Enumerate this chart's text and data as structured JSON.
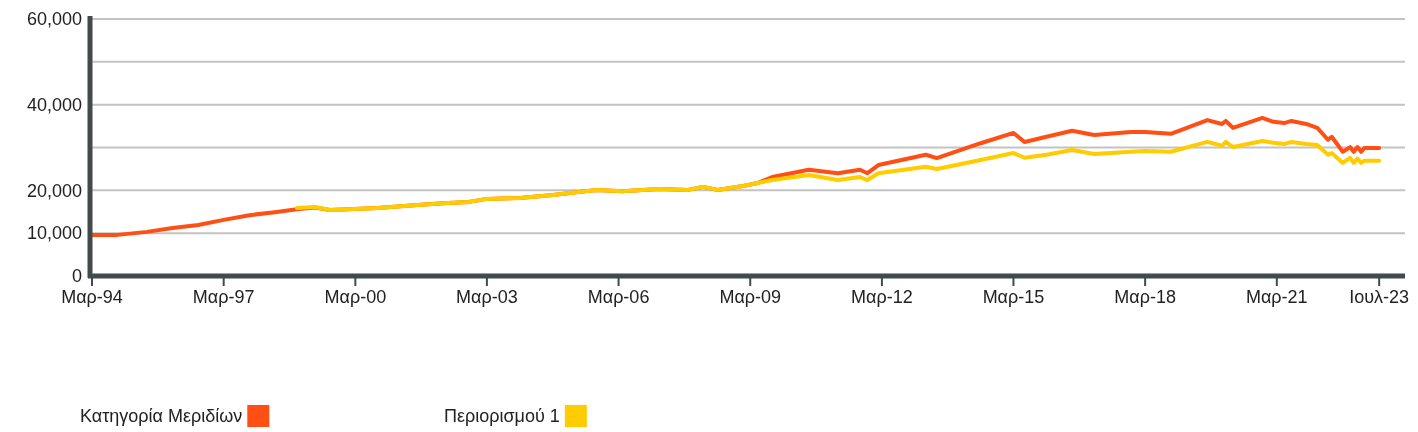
{
  "chart_data": {
    "type": "line",
    "xlim": [
      "1994-03",
      "2024-02"
    ],
    "ylim": [
      0,
      60000
    ],
    "yticks": [
      0,
      {
        "value": 10000,
        "label": "10,000"
      },
      {
        "value": 20000,
        "label": "20,000"
      },
      {
        "value": 30000,
        "label": null
      },
      {
        "value": 40000,
        "label": "40,000"
      },
      {
        "value": 50000,
        "label": null
      },
      {
        "value": 60000,
        "label": "60,000"
      }
    ],
    "xticks": [
      {
        "value": "1994-03",
        "label": "Μαρ-94"
      },
      {
        "value": "1997-03",
        "label": "Μαρ-97"
      },
      {
        "value": "2000-03",
        "label": "Μαρ-00"
      },
      {
        "value": "2003-03",
        "label": "Μαρ-03"
      },
      {
        "value": "2006-03",
        "label": "Μαρ-06"
      },
      {
        "value": "2009-03",
        "label": "Μαρ-09"
      },
      {
        "value": "2012-03",
        "label": "Μαρ-12"
      },
      {
        "value": "2015-03",
        "label": "Μαρ-15"
      },
      {
        "value": "2018-03",
        "label": "Μαρ-18"
      },
      {
        "value": "2021-03",
        "label": "Μαρ-21"
      },
      {
        "value": "2023-07",
        "label": "Ιουλ-23"
      }
    ],
    "grid": "y",
    "legend": "bottom left",
    "line_style": "solid",
    "marker": "none",
    "series": [
      {
        "name": "Κατηγορία Μεριδίων",
        "color": "#ff4f14",
        "x": [
          "1994-03",
          "1994-10",
          "1995-06",
          "1996-01",
          "1996-08",
          "1997-03",
          "1997-10",
          "1998-05",
          "1998-11",
          "1999-04",
          "1999-08",
          "2000-01",
          "2000-09",
          "2001-08",
          "2002-03",
          "2002-10",
          "2003-03",
          "2003-12",
          "2004-09",
          "2005-04",
          "2005-09",
          "2006-04",
          "2007-02",
          "2007-10",
          "2008-02",
          "2008-06",
          "2009-01",
          "2009-05",
          "2009-09",
          "2010-07",
          "2011-03",
          "2011-09",
          "2011-11",
          "2012-02",
          "2013-03",
          "2013-06",
          "2014-06",
          "2015-03",
          "2015-06",
          "2015-12",
          "2016-07",
          "2017-01",
          "2017-11",
          "2018-03",
          "2018-10",
          "2019-08",
          "2019-12",
          "2020-01",
          "2020-03",
          "2020-11",
          "2021-02",
          "2021-05",
          "2021-07",
          "2021-11",
          "2022-02",
          "2022-05",
          "2022-06",
          "2022-09",
          "2022-11",
          "2022-12",
          "2023-01",
          "2023-02",
          "2023-03",
          "2023-07"
        ],
        "values": [
          9600,
          9600,
          10300,
          11200,
          11900,
          13100,
          14200,
          14900,
          15600,
          16000,
          15400,
          15600,
          15900,
          16600,
          17000,
          17300,
          18000,
          18200,
          18900,
          19600,
          20100,
          19800,
          20300,
          20100,
          20800,
          20100,
          21000,
          21700,
          23100,
          24800,
          24000,
          24800,
          24000,
          25900,
          28300,
          27500,
          31000,
          33400,
          31300,
          32500,
          33900,
          32900,
          33600,
          33600,
          33200,
          36400,
          35500,
          36200,
          34600,
          36900,
          36000,
          35700,
          36200,
          35500,
          34600,
          31800,
          32500,
          29000,
          30100,
          29000,
          30100,
          29000,
          29900,
          29900
        ]
      },
      {
        "name": "Περιορισμού 1",
        "color": "#ffcc00",
        "x": [
          "1998-11",
          "1999-04",
          "1999-08",
          "2000-01",
          "2000-09",
          "2001-08",
          "2002-03",
          "2002-10",
          "2003-03",
          "2003-12",
          "2004-09",
          "2005-04",
          "2005-09",
          "2006-04",
          "2007-02",
          "2007-10",
          "2008-02",
          "2008-06",
          "2009-01",
          "2009-05",
          "2009-09",
          "2010-07",
          "2011-03",
          "2011-09",
          "2011-11",
          "2012-02",
          "2013-03",
          "2013-06",
          "2014-06",
          "2015-03",
          "2015-06",
          "2015-12",
          "2016-07",
          "2017-01",
          "2017-11",
          "2018-03",
          "2018-10",
          "2019-08",
          "2019-12",
          "2020-01",
          "2020-03",
          "2020-11",
          "2021-02",
          "2021-05",
          "2021-07",
          "2021-11",
          "2022-02",
          "2022-05",
          "2022-06",
          "2022-09",
          "2022-11",
          "2022-12",
          "2023-01",
          "2023-02",
          "2023-03",
          "2023-07"
        ],
        "values": [
          15900,
          16100,
          15400,
          15600,
          15900,
          16600,
          17000,
          17300,
          18000,
          18200,
          18900,
          19600,
          20100,
          19800,
          20300,
          20100,
          20800,
          20100,
          21000,
          21700,
          22400,
          23600,
          22400,
          23100,
          22400,
          24000,
          25500,
          25000,
          27100,
          28700,
          27600,
          28300,
          29400,
          28500,
          29000,
          29200,
          29000,
          31300,
          30400,
          31300,
          30100,
          31500,
          31100,
          30800,
          31300,
          30800,
          30600,
          28300,
          28700,
          26400,
          27600,
          26400,
          27400,
          26400,
          26900,
          26900
        ]
      }
    ]
  }
}
